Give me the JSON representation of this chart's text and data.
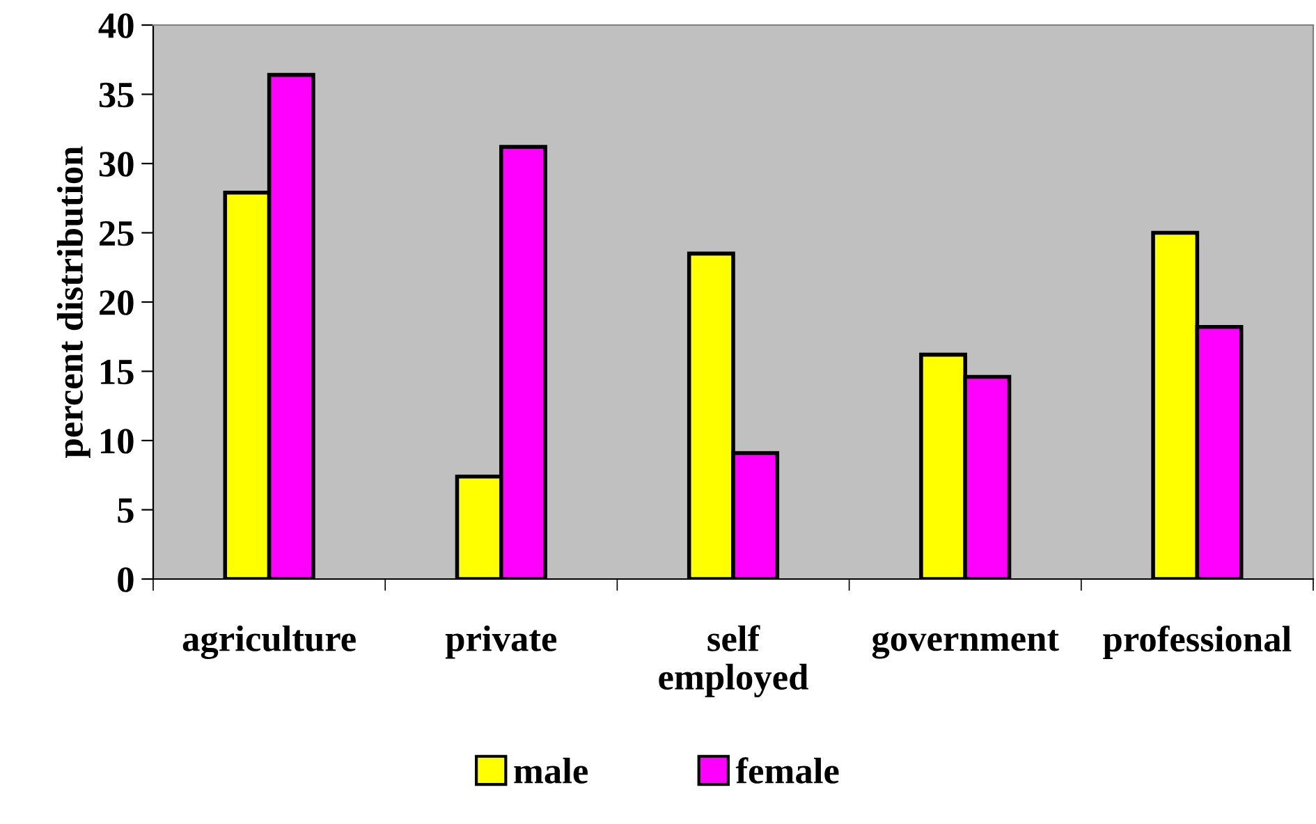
{
  "chart_data": {
    "type": "bar",
    "ylabel": "percent distribution",
    "categories": [
      "agriculture",
      "private",
      "self\nemployed",
      "government",
      "professional"
    ],
    "series": [
      {
        "name": "male",
        "color": "#ffff00",
        "values": [
          27.9,
          7.4,
          23.5,
          16.2,
          25.0
        ]
      },
      {
        "name": "female",
        "color": "#ff00ff",
        "values": [
          36.4,
          31.2,
          9.1,
          14.6,
          18.2
        ]
      }
    ],
    "ylim": [
      0,
      40
    ],
    "yticks": [
      0,
      5,
      10,
      15,
      20,
      25,
      30,
      35,
      40
    ],
    "grid": false,
    "legend": "bottom"
  }
}
